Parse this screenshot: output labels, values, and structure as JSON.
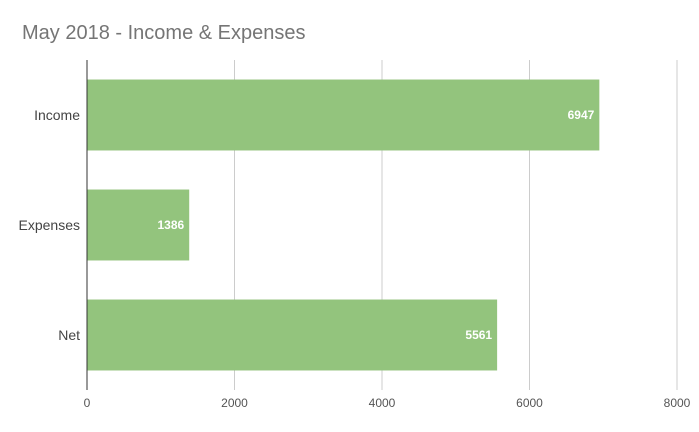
{
  "chart_data": {
    "type": "bar",
    "orientation": "horizontal",
    "title": "May 2018 - Income & Expenses",
    "categories": [
      "Income",
      "Expenses",
      "Net"
    ],
    "values": [
      6947,
      1386,
      5561
    ],
    "xlabel": "",
    "ylabel": "",
    "xlim": [
      0,
      8000
    ],
    "x_ticks": [
      "0",
      "2000",
      "4000",
      "6000",
      "8000"
    ],
    "grid": true,
    "legend": "none",
    "data_labels": [
      "6947",
      "1386",
      "5561"
    ],
    "bar_color": "#93c47d"
  }
}
